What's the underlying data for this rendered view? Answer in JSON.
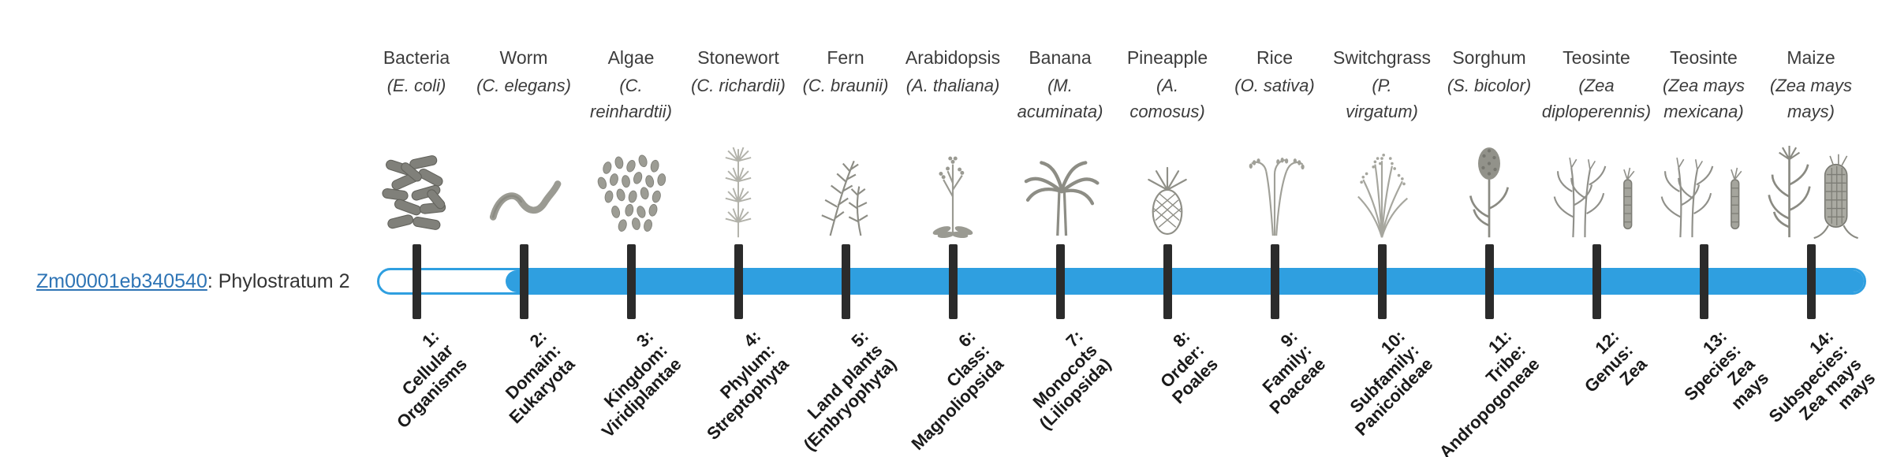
{
  "gene": {
    "id": "Zm00001eb340540",
    "suffix": ": Phylostratum 2",
    "phylostratum": 2
  },
  "timeline": {
    "bar_color": "#2f9fe0",
    "bar_empty_color": "#ffffff",
    "tick_color": "#2b2b2b",
    "filled_from_stratum": 2,
    "num_strata": 14
  },
  "taxa": [
    {
      "common": "Bacteria",
      "sci_lines": [
        "(E. coli)"
      ],
      "icon": "bacteria-icon",
      "stratum_lines": [
        "1:",
        "Cellular",
        "Organisms"
      ]
    },
    {
      "common": "Worm",
      "sci_lines": [
        "(C. elegans)"
      ],
      "icon": "worm-icon",
      "stratum_lines": [
        "2:",
        "Domain:",
        "Eukaryota"
      ]
    },
    {
      "common": "Algae",
      "sci_lines": [
        "(C.",
        "reinhardtii)"
      ],
      "icon": "algae-icon",
      "stratum_lines": [
        "3:",
        "Kingdom:",
        "Viridiplantae"
      ]
    },
    {
      "common": "Stonewort",
      "sci_lines": [
        "(C. richardii)"
      ],
      "icon": "stonewort-icon",
      "stratum_lines": [
        "4:",
        "Phylum:",
        "Streptophyta"
      ]
    },
    {
      "common": "Fern",
      "sci_lines": [
        "(C. braunii)"
      ],
      "icon": "fern-icon",
      "stratum_lines": [
        "5:",
        "Land plants",
        "(Embryophyta)"
      ]
    },
    {
      "common": "Arabidopsis",
      "sci_lines": [
        "(A. thaliana)"
      ],
      "icon": "arabidopsis-icon",
      "stratum_lines": [
        "6:",
        "Class:",
        "Magnoliopsida"
      ]
    },
    {
      "common": "Banana",
      "sci_lines": [
        "(M.",
        "acuminata)"
      ],
      "icon": "banana-icon",
      "stratum_lines": [
        "7:",
        "Monocots",
        "(Liliopsida)"
      ]
    },
    {
      "common": "Pineapple",
      "sci_lines": [
        "(A.",
        "comosus)"
      ],
      "icon": "pineapple-icon",
      "stratum_lines": [
        "8:",
        "Order:",
        "Poales"
      ]
    },
    {
      "common": "Rice",
      "sci_lines": [
        "(O. sativa)"
      ],
      "icon": "rice-icon",
      "stratum_lines": [
        "9:",
        "Family:",
        "Poaceae"
      ]
    },
    {
      "common": "Switchgrass",
      "sci_lines": [
        "(P.",
        "virgatum)"
      ],
      "icon": "switchgrass-icon",
      "stratum_lines": [
        "10:",
        "Subfamily:",
        "Panicoideae"
      ]
    },
    {
      "common": "Sorghum",
      "sci_lines": [
        "(S. bicolor)"
      ],
      "icon": "sorghum-icon",
      "stratum_lines": [
        "11:",
        "Tribe:",
        "Andropogoneae"
      ]
    },
    {
      "common": "Teosinte",
      "sci_lines": [
        "(Zea",
        "diploperennis)"
      ],
      "icon": "teosinte-icon",
      "stratum_lines": [
        "12:",
        "Genus:",
        "Zea"
      ]
    },
    {
      "common": "Teosinte",
      "sci_lines": [
        "(Zea mays",
        "mexicana)"
      ],
      "icon": "teosinte-icon",
      "stratum_lines": [
        "13:",
        "Species:",
        "Zea",
        "mays"
      ]
    },
    {
      "common": "Maize",
      "sci_lines": [
        "(Zea mays",
        "mays)"
      ],
      "icon": "maize-icon",
      "stratum_lines": [
        "14:",
        "Subspecies:",
        "Zea mays",
        "mays"
      ]
    }
  ]
}
